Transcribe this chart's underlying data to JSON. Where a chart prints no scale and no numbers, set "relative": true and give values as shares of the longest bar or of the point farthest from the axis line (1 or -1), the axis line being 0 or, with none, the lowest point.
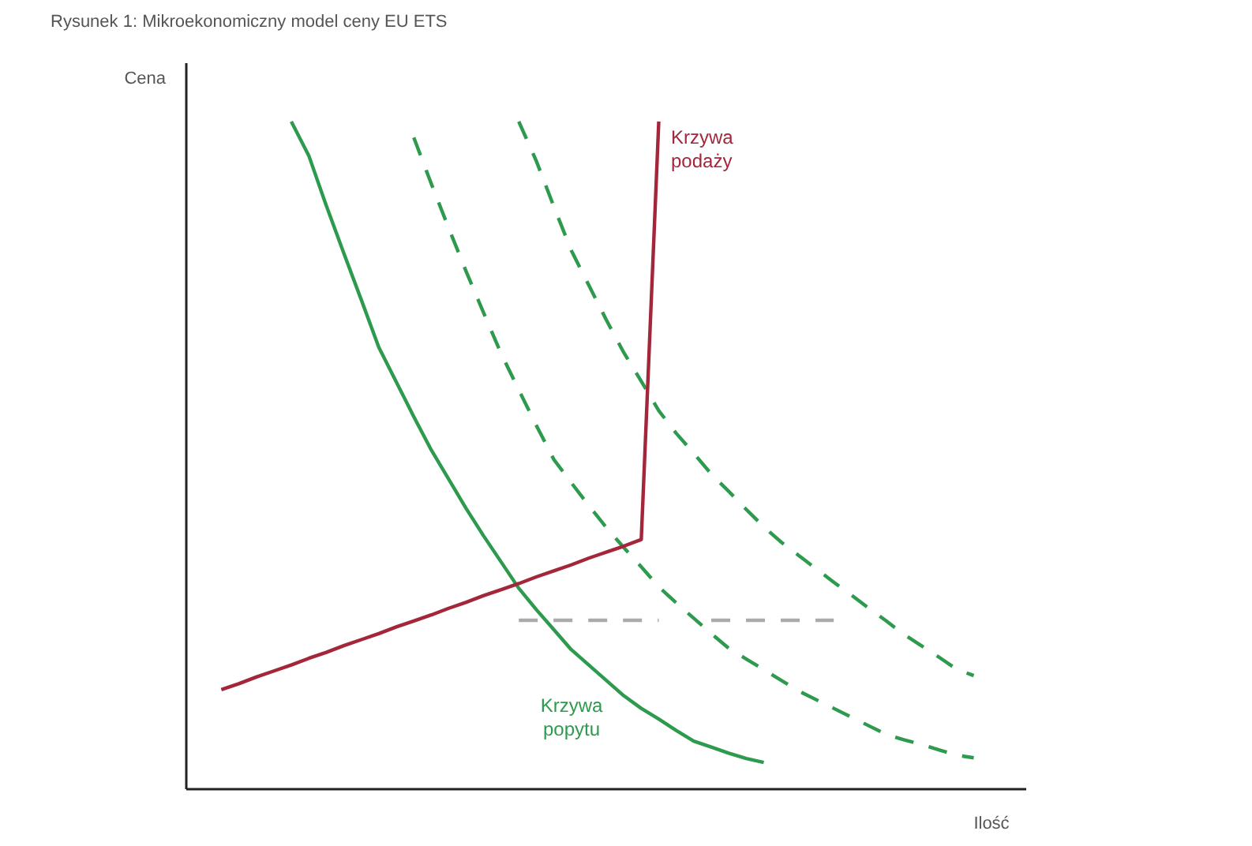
{
  "chart_data": {
    "type": "line",
    "title": "Rysunek 1:  Mikroekonomiczny model ceny EU ETS",
    "xlabel": "Ilość",
    "ylabel": "Cena",
    "relative": true,
    "categories": [
      null,
      null,
      null,
      null,
      null,
      null,
      null,
      null,
      null,
      null,
      null,
      null,
      null,
      null,
      null,
      null,
      null,
      null,
      null,
      null,
      null,
      null,
      null,
      null,
      null,
      null,
      null,
      null,
      null,
      null,
      null,
      null,
      null,
      null,
      null,
      null,
      null,
      null,
      null,
      null,
      null,
      null,
      null,
      null,
      null,
      null,
      null,
      null,
      null
    ],
    "series": [
      {
        "name": "Krzywa popytu",
        "color": "#2e9a4e",
        "line_style": "solid",
        "values": [
          null,
          null,
          null,
          null,
          null,
          null,
          1.0,
          0.949,
          0.874,
          0.803,
          0.733,
          0.662,
          0.61,
          0.558,
          0.508,
          0.464,
          0.42,
          0.379,
          0.34,
          0.301,
          0.269,
          0.239,
          0.209,
          0.186,
          0.163,
          0.14,
          0.121,
          0.105,
          0.088,
          0.072,
          0.063,
          0.054,
          0.046,
          0.04,
          null,
          null,
          null,
          null,
          null,
          null,
          null,
          null,
          null,
          null,
          null,
          null,
          null,
          null,
          null
        ]
      },
      {
        "color": "#2e9a4e",
        "line_style": "dashed",
        "values": [
          null,
          null,
          null,
          null,
          null,
          null,
          null,
          null,
          null,
          null,
          null,
          null,
          null,
          0.976,
          0.907,
          0.84,
          0.775,
          0.713,
          0.652,
          0.598,
          0.545,
          0.494,
          0.459,
          0.425,
          0.392,
          0.362,
          0.333,
          0.303,
          0.279,
          0.256,
          0.233,
          0.211,
          0.195,
          0.179,
          0.163,
          0.147,
          0.134,
          0.121,
          0.108,
          0.095,
          0.082,
          0.074,
          0.067,
          0.059,
          0.051,
          0.047,
          null,
          null,
          null
        ]
      },
      {
        "color": "#2e9a4e",
        "line_style": "dashed",
        "values": [
          null,
          null,
          null,
          null,
          null,
          null,
          null,
          null,
          null,
          null,
          null,
          null,
          null,
          null,
          null,
          null,
          null,
          null,
          null,
          1.0,
          0.941,
          0.873,
          0.807,
          0.755,
          0.703,
          0.654,
          0.611,
          0.567,
          0.533,
          0.503,
          0.472,
          0.446,
          0.419,
          0.393,
          0.37,
          0.35,
          0.33,
          0.31,
          0.291,
          0.271,
          0.252,
          0.232,
          0.215,
          0.198,
          0.18,
          0.17,
          null,
          null,
          null
        ]
      },
      {
        "name": "Krzywa podaży",
        "color": "#a3263a",
        "line_style": "solid",
        "values": [
          null,
          null,
          0.149,
          0.158,
          0.168,
          0.177,
          0.186,
          0.196,
          0.205,
          0.215,
          0.224,
          0.233,
          0.243,
          0.252,
          0.261,
          0.271,
          0.28,
          0.29,
          0.299,
          0.308,
          0.318,
          0.327,
          0.336,
          0.346,
          0.355,
          0.364,
          0.374,
          1.0,
          null,
          null,
          null,
          null,
          null,
          null,
          null,
          null,
          null,
          null,
          null,
          null,
          null,
          null,
          null,
          null,
          null,
          null,
          null,
          null,
          null
        ]
      },
      {
        "color": "#aaaaaa",
        "line_style": "dashed",
        "values": [
          null,
          null,
          null,
          null,
          null,
          null,
          null,
          null,
          null,
          null,
          null,
          null,
          null,
          null,
          null,
          null,
          null,
          null,
          null,
          0.253,
          0.253,
          0.253,
          0.253,
          0.253,
          0.253,
          0.253,
          0.253,
          0.253,
          null,
          null,
          null,
          null,
          null,
          null,
          null,
          null,
          null,
          null,
          null,
          null,
          null,
          null,
          null,
          null,
          null,
          null,
          null,
          null,
          null
        ]
      },
      {
        "color": "#aaaaaa",
        "line_style": "dashed",
        "values": [
          null,
          null,
          null,
          null,
          null,
          null,
          null,
          null,
          null,
          null,
          null,
          null,
          null,
          null,
          null,
          null,
          null,
          null,
          null,
          null,
          null,
          null,
          null,
          null,
          null,
          null,
          null,
          null,
          null,
          null,
          0.253,
          0.253,
          0.253,
          0.253,
          0.253,
          0.253,
          0.253,
          0.253,
          null,
          null,
          null,
          null,
          null,
          null,
          null,
          null,
          null,
          null,
          null
        ]
      }
    ]
  }
}
